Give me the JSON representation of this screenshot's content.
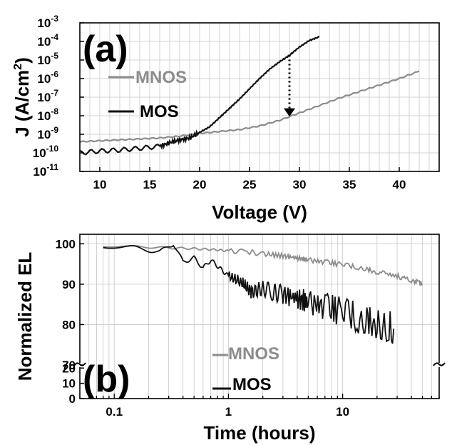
{
  "chart_data": [
    {
      "type": "line",
      "panel_label": "(a)",
      "xlabel": "Voltage (V)",
      "ylabel": "J (A/cm²)",
      "ylabel_base": "J (A/cm",
      "ylabel_sup": "2",
      "ylabel_end": ")",
      "xlim": [
        8,
        44
      ],
      "ylim": [
        -11,
        -3
      ],
      "y_scale": "log",
      "x_ticks": [
        "10",
        "15",
        "20",
        "25",
        "30",
        "35",
        "40"
      ],
      "x_tick_values": [
        10,
        15,
        20,
        25,
        30,
        35,
        40
      ],
      "y_ticks": [
        {
          "base": "10",
          "exp": "-3"
        },
        {
          "base": "10",
          "exp": "-4"
        },
        {
          "base": "10",
          "exp": "-5"
        },
        {
          "base": "10",
          "exp": "-6"
        },
        {
          "base": "10",
          "exp": "-7"
        },
        {
          "base": "10",
          "exp": "-8"
        },
        {
          "base": "10",
          "exp": "-9"
        },
        {
          "base": "10",
          "exp": "-10"
        },
        {
          "base": "10",
          "exp": "-11"
        }
      ],
      "grid": true,
      "legend_position": "left",
      "annotation": "dotted arrow at 29 V from MOS curve down to MNOS curve",
      "series": [
        {
          "name": "MNOS",
          "color": "#8c8c8c",
          "x": [
            8,
            10,
            12,
            14,
            16,
            18,
            20,
            22,
            24,
            26,
            28,
            30,
            32,
            34,
            36,
            38,
            40,
            42
          ],
          "log10_y": [
            -9.4,
            -9.35,
            -9.3,
            -9.25,
            -9.2,
            -9.1,
            -8.95,
            -8.85,
            -8.75,
            -8.55,
            -8.25,
            -7.85,
            -7.45,
            -7.05,
            -6.7,
            -6.35,
            -6.0,
            -5.6
          ]
        },
        {
          "name": "MOS",
          "color": "#111111",
          "x": [
            8,
            10,
            12,
            14,
            16,
            17,
            18,
            19,
            20,
            21,
            22,
            23,
            24,
            25,
            26,
            27,
            28,
            29,
            30,
            31,
            32
          ],
          "log10_y": [
            -10.0,
            -9.9,
            -9.85,
            -9.75,
            -9.65,
            -9.45,
            -9.3,
            -9.2,
            -8.9,
            -8.6,
            -8.1,
            -7.6,
            -7.1,
            -6.55,
            -6.0,
            -5.5,
            -5.1,
            -4.75,
            -4.3,
            -3.95,
            -3.75
          ]
        }
      ]
    },
    {
      "type": "line",
      "panel_label": "(b)",
      "xlabel": "Time (hours)",
      "ylabel": "Normalized EL",
      "x_scale": "log",
      "xlim": [
        0.05,
        70
      ],
      "y_axis_break": true,
      "y_ticks_upper": [
        "70",
        "80",
        "90",
        "100"
      ],
      "y_ticks_lower": [
        "0",
        "10",
        "20"
      ],
      "x_ticks": [
        "0.1",
        "1",
        "10"
      ],
      "x_tick_values": [
        0.1,
        1,
        10
      ],
      "grid": true,
      "legend_position": "bottom-center",
      "series": [
        {
          "name": "MNOS",
          "color": "#8c8c8c",
          "x": [
            0.08,
            0.15,
            0.3,
            0.5,
            0.8,
            1.0,
            1.5,
            2,
            3,
            4,
            5,
            7,
            10,
            15,
            20,
            30,
            40,
            50
          ],
          "y": [
            99.5,
            99.3,
            99.0,
            98.8,
            98.5,
            98.2,
            98.0,
            97.5,
            97.0,
            96.5,
            96.0,
            95.5,
            94.8,
            94.0,
            93.0,
            92.0,
            91.0,
            90.0
          ]
        },
        {
          "name": "MOS",
          "color": "#111111",
          "x": [
            0.08,
            0.15,
            0.25,
            0.33,
            0.4,
            0.5,
            0.6,
            0.7,
            0.8,
            1.0,
            1.3,
            1.6,
            2,
            2.5,
            3,
            4,
            5,
            7,
            10,
            15,
            20,
            28
          ],
          "y": [
            99.5,
            99.0,
            98.0,
            100.0,
            95.5,
            96.5,
            94.0,
            96.0,
            94.5,
            92.0,
            90.5,
            88.0,
            89.0,
            88.0,
            87.5,
            86.5,
            85.5,
            84.5,
            83.0,
            81.5,
            80.5,
            79.0
          ]
        }
      ]
    }
  ]
}
